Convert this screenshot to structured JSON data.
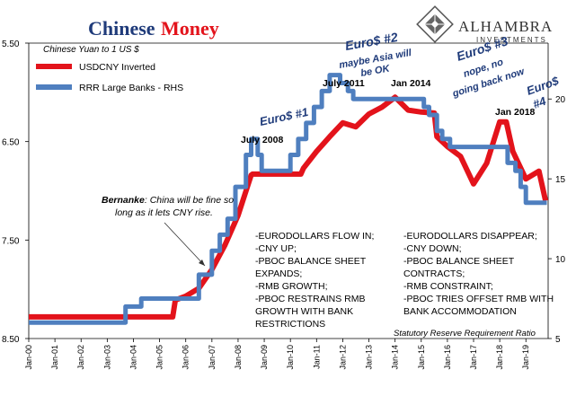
{
  "header": {
    "title_part1": "Chinese",
    "title_part2": "Money",
    "subtitle": "Chinese Yuan to 1 US $"
  },
  "brand": {
    "name": "ALHAMBRA",
    "tagline": "INVESTMENTS"
  },
  "legend": {
    "items": [
      {
        "label": "USDCNY Inverted",
        "color": "#e3131b"
      },
      {
        "label": "RRR Large Banks - RHS",
        "color": "#4f7fbf"
      }
    ]
  },
  "annotations": {
    "euro1": "Euro$ #1",
    "euro2_title": "Euro$ #2",
    "euro2_sub1": "maybe Asia will",
    "euro2_sub2": "be OK",
    "euro3_title": "Euro$ #3",
    "euro3_sub1": "nope, no",
    "euro3_sub2": "going back now",
    "euro4_line1": "Euro$",
    "euro4_line2": "#4",
    "july2008": "July 2008",
    "july2011": "July 2011",
    "jan2014": "Jan 2014",
    "jan2018": "Jan 2018",
    "bernanke_name": "Bernanke",
    "bernanke_rest1": ": China will be fine so",
    "bernanke_rest2": "long as it lets CNY rise.",
    "left_block": [
      "-EURODOLLARS FLOW IN;",
      "-CNY UP;",
      "-PBOC BALANCE SHEET",
      "EXPANDS;",
      "-RMB GROWTH;",
      "-PBOC RESTRAINS RMB",
      "GROWTH WITH BANK",
      "RESTRICTIONS"
    ],
    "right_block": [
      "-EURODOLLARS DISAPPEAR;",
      "-CNY DOWN;",
      "-PBOC BALANCE SHEET",
      "CONTRACTS;",
      "-RMB CONSTRAINT;",
      "-PBOC TRIES OFFSET RMB WITH",
      "BANK ACCOMMODATION"
    ],
    "source_note": "Statutory Reserve Requirement Ratio"
  },
  "chart_data": {
    "type": "line",
    "x_tick_labels": [
      "Jan-00",
      "Jan-01",
      "Jan-02",
      "Jan-03",
      "Jan-04",
      "Jan-05",
      "Jan-06",
      "Jan-07",
      "Jan-08",
      "Jan-09",
      "Jan-10",
      "Jan-11",
      "Jan-12",
      "Jan-13",
      "Jan-14",
      "Jan-15",
      "Jan-16",
      "Jan-17",
      "Jan-18",
      "Jan-19"
    ],
    "left_axis": {
      "ticks": [
        "5.50",
        "6.50",
        "7.50",
        "8.50"
      ],
      "tick_values": [
        5.5,
        6.5,
        7.5,
        8.5
      ],
      "ylim": [
        8.5,
        5.5
      ],
      "inverted": true
    },
    "right_axis": {
      "ticks": [
        "20",
        "15",
        "10",
        "5"
      ],
      "tick_values": [
        20,
        15,
        10,
        5
      ],
      "ylim": [
        5,
        23.5
      ]
    },
    "series": [
      {
        "name": "USDCNY Inverted",
        "axis": "left",
        "color": "#e3131b",
        "x": [
          2000.0,
          2005.5,
          2005.6,
          2006.0,
          2006.5,
          2007.0,
          2007.5,
          2008.0,
          2008.5,
          2008.55,
          2009.0,
          2009.5,
          2010.0,
          2010.4,
          2010.5,
          2011.0,
          2011.5,
          2012.0,
          2012.5,
          2013.0,
          2013.5,
          2014.0,
          2014.5,
          2015.0,
          2015.5,
          2015.6,
          2016.0,
          2016.5,
          2017.0,
          2017.5,
          2018.0,
          2018.25,
          2018.5,
          2019.0,
          2019.5,
          2019.75
        ],
        "values": [
          8.28,
          8.28,
          8.11,
          8.07,
          7.99,
          7.8,
          7.55,
          7.25,
          6.84,
          6.83,
          6.83,
          6.83,
          6.83,
          6.83,
          6.77,
          6.6,
          6.45,
          6.31,
          6.35,
          6.22,
          6.15,
          6.05,
          6.18,
          6.2,
          6.21,
          6.45,
          6.55,
          6.65,
          6.93,
          6.72,
          6.3,
          6.3,
          6.6,
          6.88,
          6.8,
          7.1
        ]
      },
      {
        "name": "RRR Large Banks - RHS",
        "axis": "right",
        "color": "#4f7fbf",
        "x": [
          2000.0,
          2003.7,
          2003.7,
          2004.3,
          2004.3,
          2006.5,
          2006.5,
          2007.0,
          2007.0,
          2007.3,
          2007.3,
          2007.6,
          2007.6,
          2007.9,
          2007.9,
          2008.3,
          2008.3,
          2008.5,
          2008.5,
          2008.75,
          2008.75,
          2008.9,
          2008.9,
          2010.0,
          2010.0,
          2010.3,
          2010.3,
          2010.6,
          2010.6,
          2010.9,
          2010.9,
          2011.2,
          2011.2,
          2011.5,
          2011.5,
          2011.9,
          2011.9,
          2012.2,
          2012.2,
          2012.4,
          2012.4,
          2015.1,
          2015.1,
          2015.3,
          2015.3,
          2015.6,
          2015.6,
          2015.8,
          2015.8,
          2016.1,
          2016.1,
          2018.3,
          2018.3,
          2018.6,
          2018.6,
          2018.8,
          2018.8,
          2019.0,
          2019.0,
          2019.8
        ],
        "values": [
          6,
          6,
          7,
          7,
          7.5,
          7.5,
          9,
          9,
          10.5,
          10.5,
          11.5,
          11.5,
          12.5,
          12.5,
          14.5,
          14.5,
          16.5,
          16.5,
          17.5,
          17.5,
          16.5,
          16.5,
          15.5,
          15.5,
          16.5,
          16.5,
          17.5,
          17.5,
          18.5,
          18.5,
          19.5,
          19.5,
          20.5,
          20.5,
          21.5,
          21.5,
          21,
          21,
          20.5,
          20.5,
          20,
          20,
          19.5,
          19.5,
          19,
          19,
          18,
          18,
          17.5,
          17.5,
          17,
          17,
          16,
          16,
          15.5,
          15.5,
          14.5,
          14.5,
          13.5,
          13.5
        ]
      }
    ],
    "grid": false,
    "legend_position": "top-left"
  }
}
